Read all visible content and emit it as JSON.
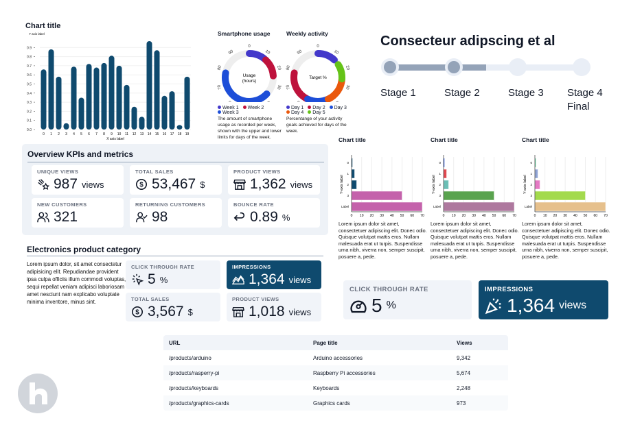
{
  "bar_chart": {
    "chart_data": {
      "type": "bar",
      "title": "Chart title",
      "xlabel": "X axis label",
      "ylabel": "Y axis label",
      "categories": [
        "0",
        "1",
        "2",
        "3",
        "4",
        "5",
        "6",
        "7",
        "8",
        "9",
        "10",
        "11",
        "12",
        "13",
        "14",
        "15",
        "16",
        "17",
        "18",
        "19"
      ],
      "values": [
        0.66,
        0.88,
        0.58,
        0.07,
        0.69,
        0.35,
        0.72,
        0.68,
        0.73,
        0.81,
        0.7,
        0.49,
        0.25,
        0.14,
        0.97,
        0.87,
        0.37,
        0.42,
        0.05,
        0.58
      ],
      "ylim": [
        0,
        1
      ],
      "yticks": [
        "0.0",
        "0.1",
        "0.2",
        "0.3",
        "0.4",
        "0.5",
        "0.6",
        "0.7",
        "0.8",
        "0.9"
      ],
      "color": "#0f4a6e",
      "grid": true
    }
  },
  "donuts": [
    {
      "title": "Smartphone usage",
      "center": [
        "Usage",
        "(hours)"
      ],
      "ticks": [
        "0",
        "10",
        "20",
        "30",
        "40",
        "50",
        "60",
        "70",
        "80",
        "90"
      ],
      "segments": [
        {
          "name": "Week 1",
          "from": 0,
          "to": 12,
          "color": "#4338ca"
        },
        {
          "name": "Week 2",
          "from": 12,
          "to": 24,
          "color": "#be123c"
        },
        {
          "name": "Week 3",
          "from": 37,
          "to": 78,
          "color": "#1d4ed8"
        }
      ],
      "desc": "The amount of smartphone usage as recorded per week, shown with the upper and lower limits for days of the week."
    },
    {
      "title": "Weekly activity",
      "center": [
        "Target %",
        ""
      ],
      "ticks": [
        "0",
        "10",
        "20",
        "30",
        "40",
        "50",
        "60",
        "70",
        "80",
        "90"
      ],
      "segments": [
        {
          "name": "Day 1",
          "from": 0,
          "to": 12,
          "color": "#4338ca"
        },
        {
          "name": "Day 2",
          "from": 57,
          "to": 78,
          "color": "#be123c"
        },
        {
          "name": "Day 3",
          "from": 43,
          "to": 57,
          "color": "#1d4ed8"
        },
        {
          "name": "Day 4",
          "from": 26,
          "to": 43,
          "color": "#ea580c"
        },
        {
          "name": "Day 5",
          "from": 16,
          "to": 26,
          "color": "#65c318"
        }
      ],
      "desc": "Percentange of your activity goals achieved for days of the week."
    }
  ],
  "stepper": {
    "title": "Consecteur adipscing et al",
    "progress": 0.5,
    "stages": [
      "Stage 1",
      "Stage 2",
      "Stage 3",
      "Stage 4 Final"
    ]
  },
  "overview": {
    "title": "Overview KPIs and metrics",
    "cards": [
      {
        "label": "Unique views",
        "value": "987",
        "unit": "views",
        "icon": "shooting-star-icon"
      },
      {
        "label": "Total sales",
        "value": "53,467",
        "unit": "$",
        "icon": "dollar-circle-icon"
      },
      {
        "label": "Product views",
        "value": "1,362",
        "unit": "views",
        "icon": "store-icon"
      },
      {
        "label": "New customers",
        "value": "321",
        "unit": "",
        "icon": "users-icon"
      },
      {
        "label": "Returning customers",
        "value": "98",
        "unit": "",
        "icon": "user-check-icon"
      },
      {
        "label": "Bounce rate",
        "value": "0.89",
        "unit": "%",
        "icon": "return-arrow-icon"
      }
    ]
  },
  "electronics": {
    "title": "Electronics product category",
    "text": "Lorem ipsum dolor, sit amet consectetur adipisicing elit. Repudiandae provident ipsa culpa officiis illum commodi voluptas, sequi repellat veniam adipisci laboriosam amet nesciunt nam explicabo voluptate minima inventore, minus sint.",
    "cards": [
      {
        "label": "Click through rate",
        "value": "5",
        "unit": "%",
        "icon": "cursor-click-icon"
      },
      {
        "label": "Impressions",
        "value": "1,364",
        "unit": "views",
        "icon": "chart-area-icon"
      },
      {
        "label": "Total sales",
        "value": "3,567",
        "unit": "$",
        "icon": "dollar-circle-icon"
      },
      {
        "label": "Product views",
        "value": "1,018",
        "unit": "views",
        "icon": "store-icon"
      }
    ]
  },
  "hbar_charts": {
    "chart_data": [
      {
        "type": "bar",
        "orientation": "horizontal",
        "title": "Chart title",
        "xlabel": "X-axis label",
        "ylabel": "Y-axis label",
        "categories": [
          "0",
          "1",
          "2",
          "3",
          "Label"
        ],
        "values": [
          1,
          3,
          5,
          50,
          70
        ],
        "colors": [
          "#0f4a6e",
          "#0f4a6e",
          "#0f4a6e",
          "#c462ab",
          "#c462ab"
        ],
        "xlim": [
          0,
          70
        ],
        "xticks": [
          "0",
          "10",
          "20",
          "30",
          "40",
          "50",
          "60",
          "70"
        ]
      },
      {
        "type": "bar",
        "orientation": "horizontal",
        "title": "Chart title",
        "xlabel": "X-axis label",
        "ylabel": "Y-axis label",
        "categories": [
          "0",
          "1",
          "2",
          "3",
          "Label"
        ],
        "values": [
          1,
          3,
          5,
          50,
          70
        ],
        "colors": [
          "#1d4ed8",
          "#e0464e",
          "#6bbfb5",
          "#5aa34f",
          "#ae789e"
        ],
        "xlim": [
          0,
          70
        ],
        "xticks": [
          "0",
          "10",
          "20",
          "30",
          "40",
          "50",
          "60",
          "70"
        ]
      },
      {
        "type": "bar",
        "orientation": "horizontal",
        "title": "Chart title",
        "xlabel": "X-axis label",
        "ylabel": "Y-axis label",
        "categories": [
          "0",
          "1",
          "2",
          "3",
          "Label"
        ],
        "values": [
          1,
          3,
          5,
          50,
          70
        ],
        "colors": [
          "#4cc38a",
          "#8fa3d4",
          "#e57ac4",
          "#a3da4d",
          "#e6c08c"
        ],
        "xlim": [
          0,
          70
        ],
        "xticks": [
          "0",
          "10",
          "20",
          "30",
          "40",
          "50",
          "60",
          "70"
        ]
      }
    ],
    "desc": "Lorem ipsum dolor sit amet, consectetuer adipiscing elit. Donec odio. Quisque volutpat mattis eros. Nullam malesuada erat ut turpis. Suspendisse urna nibh, viverra non, semper suscipit, posuere a, pede."
  },
  "big_kpis": [
    {
      "label": "Click through rate",
      "value": "5",
      "unit": "%",
      "icon": "gauge-icon"
    },
    {
      "label": "Impressions",
      "value": "1,364",
      "unit": "views",
      "icon": "party-popper-icon"
    }
  ],
  "table": {
    "headers": [
      "URL",
      "Page title",
      "Views"
    ],
    "rows": [
      [
        "/products/arduino",
        "Arduino accessories",
        "9,342"
      ],
      [
        "/products/rasperry-pi",
        "Raspberry Pi accessories",
        "5,674"
      ],
      [
        "/products/keyboards",
        "Keyboards",
        "2,248"
      ],
      [
        "/products/graphics-cards",
        "Graphics cards",
        "973"
      ]
    ]
  }
}
